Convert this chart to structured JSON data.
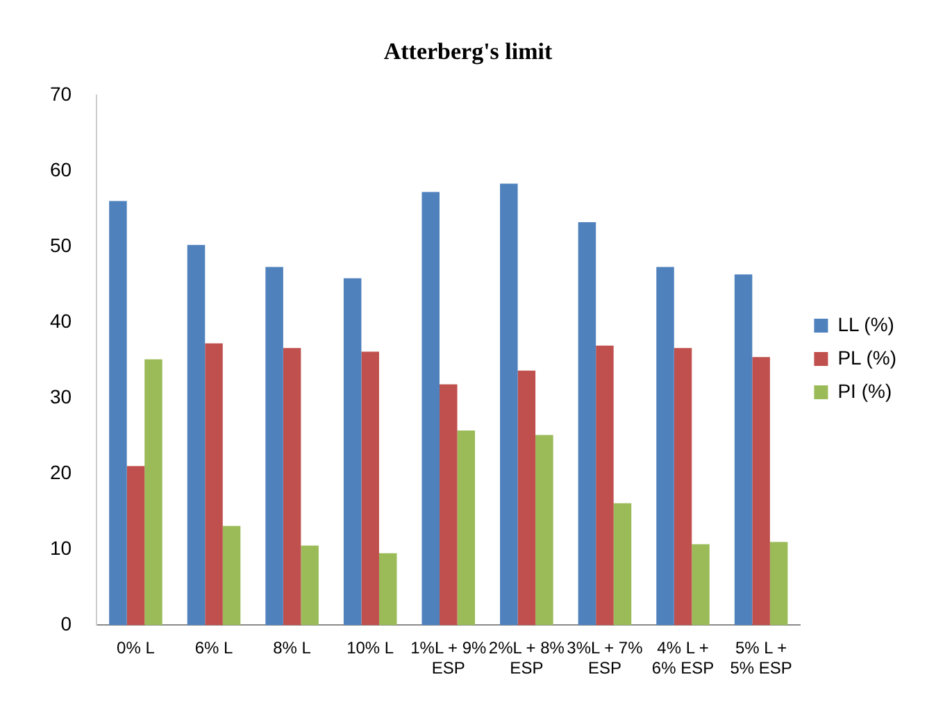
{
  "chart_data": {
    "type": "bar",
    "title": "Atterberg's limit",
    "categories": [
      "0% L",
      "6% L",
      "8% L",
      "10% L",
      "1%L + 9% ESP",
      "2%L + 8% ESP",
      "3%L + 7% ESP",
      "4% L + 6% ESP",
      "5% L + 5% ESP"
    ],
    "series": [
      {
        "name": "LL (%)",
        "color": "#4f81bd",
        "values": [
          56,
          50.2,
          47.3,
          45.8,
          57.2,
          58.3,
          53.2,
          47.3,
          46.3
        ]
      },
      {
        "name": "PL (%)",
        "color": "#c0504d",
        "values": [
          21,
          37.2,
          36.6,
          36.1,
          31.8,
          33.6,
          36.9,
          36.6,
          35.4
        ]
      },
      {
        "name": "PI (%)",
        "color": "#9bbb59",
        "values": [
          35.1,
          13.1,
          10.5,
          9.5,
          25.7,
          25.1,
          16.1,
          10.7,
          11
        ]
      }
    ],
    "ylim": [
      0,
      70
    ],
    "yticks": [
      0,
      10,
      20,
      30,
      40,
      50,
      60,
      70
    ],
    "grid": false,
    "legend": "right"
  }
}
